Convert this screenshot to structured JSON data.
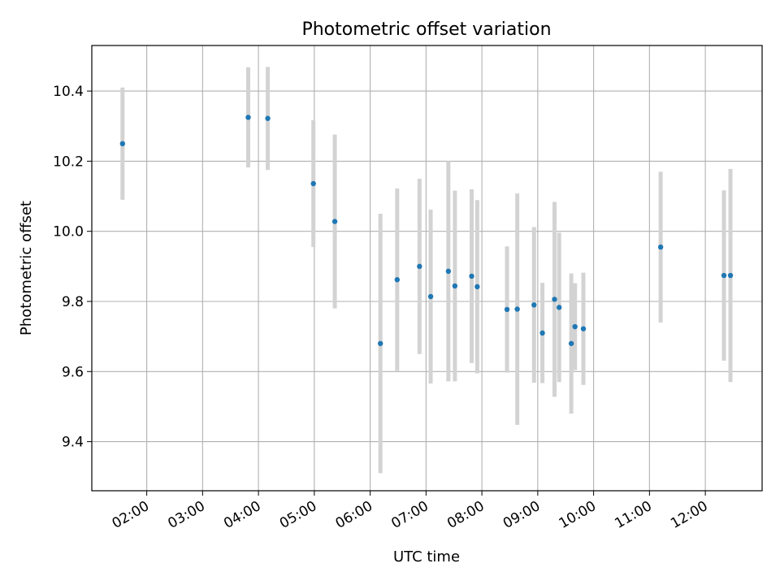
{
  "chart_data": {
    "type": "scatter",
    "title": "Photometric offset variation",
    "xlabel": "UTC time",
    "ylabel": "Photometric offset",
    "xlim": [
      "01:01",
      "13:01"
    ],
    "ylim": [
      9.26,
      10.53
    ],
    "x_ticks": [
      "02:00",
      "03:00",
      "04:00",
      "05:00",
      "06:00",
      "07:00",
      "08:00",
      "09:00",
      "10:00",
      "11:00",
      "12:00"
    ],
    "y_ticks": [
      "9.4",
      "9.6",
      "9.8",
      "10.0",
      "10.2",
      "10.4"
    ],
    "grid": true,
    "marker_color": "#1f77b4",
    "errorbar_color": "#d3d3d3",
    "points": [
      {
        "x": "01:34",
        "y": 10.25,
        "err": 0.16
      },
      {
        "x": "03:49",
        "y": 10.325,
        "err": 0.143
      },
      {
        "x": "04:10",
        "y": 10.322,
        "err": 0.147
      },
      {
        "x": "04:59",
        "y": 10.136,
        "err": 0.181
      },
      {
        "x": "05:22",
        "y": 10.028,
        "err": 0.248
      },
      {
        "x": "06:11",
        "y": 9.68,
        "err": 0.37
      },
      {
        "x": "06:29",
        "y": 9.862,
        "err": 0.26
      },
      {
        "x": "06:53",
        "y": 9.9,
        "err": 0.25
      },
      {
        "x": "07:05",
        "y": 9.814,
        "err": 0.248
      },
      {
        "x": "07:24",
        "y": 9.886,
        "err": 0.314
      },
      {
        "x": "07:31",
        "y": 9.844,
        "err": 0.272
      },
      {
        "x": "07:49",
        "y": 9.872,
        "err": 0.248
      },
      {
        "x": "07:55",
        "y": 9.842,
        "err": 0.247
      },
      {
        "x": "08:27",
        "y": 9.777,
        "err": 0.18
      },
      {
        "x": "08:38",
        "y": 9.778,
        "err": 0.33
      },
      {
        "x": "08:56",
        "y": 9.79,
        "err": 0.222
      },
      {
        "x": "09:05",
        "y": 9.71,
        "err": 0.143
      },
      {
        "x": "09:18",
        "y": 9.806,
        "err": 0.278
      },
      {
        "x": "09:23",
        "y": 9.783,
        "err": 0.213
      },
      {
        "x": "09:36",
        "y": 9.68,
        "err": 0.2
      },
      {
        "x": "09:40",
        "y": 9.728,
        "err": 0.124
      },
      {
        "x": "09:49",
        "y": 9.722,
        "err": 0.16
      },
      {
        "x": "11:12",
        "y": 9.955,
        "err": 0.215
      },
      {
        "x": "12:20",
        "y": 9.874,
        "err": 0.243
      },
      {
        "x": "12:27",
        "y": 9.874,
        "err": 0.304
      }
    ]
  }
}
